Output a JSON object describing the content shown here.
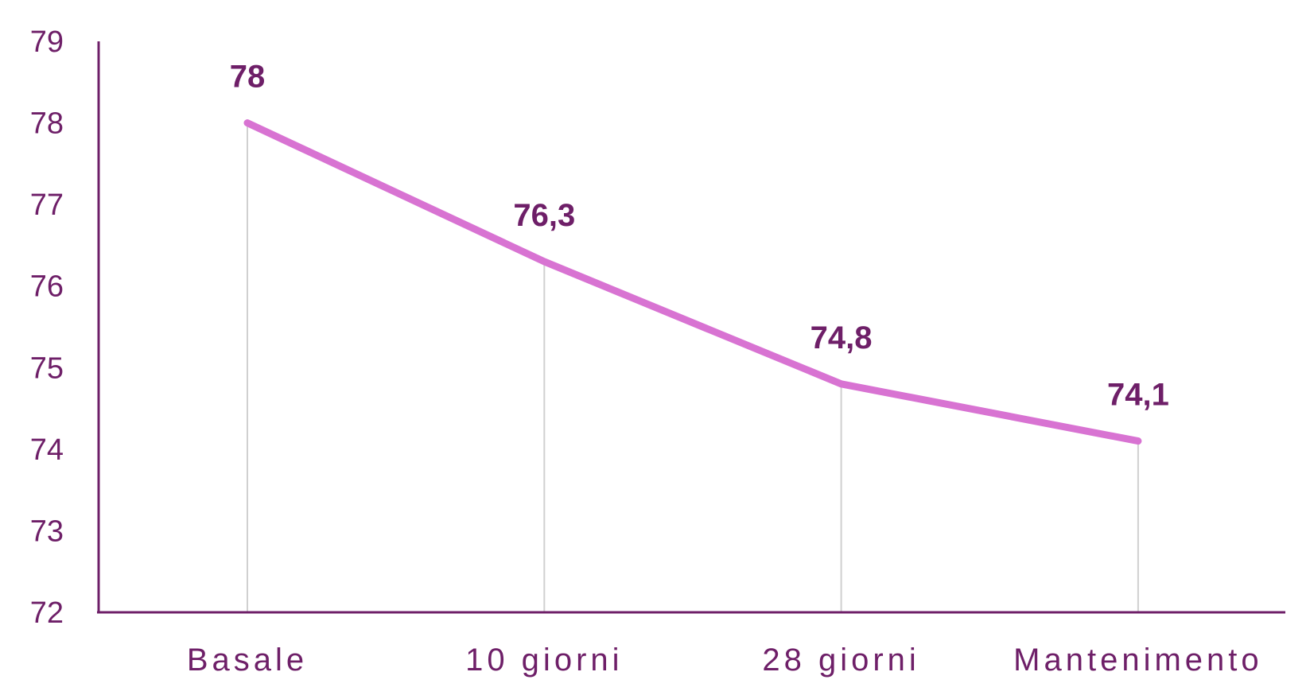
{
  "colors": {
    "line": "#d873d2",
    "text": "#6e1f68",
    "axis": "#6e1f68",
    "drop": "#d0d0d0"
  },
  "chart_data": {
    "type": "line",
    "categories": [
      "Basale",
      "10 giorni",
      "28 giorni",
      "Mantenimento"
    ],
    "values": [
      78,
      76.3,
      74.8,
      74.1
    ],
    "data_labels": [
      "78",
      "76,3",
      "74,8",
      "74,1"
    ],
    "yticks": [
      72,
      73,
      74,
      75,
      76,
      77,
      78,
      79
    ],
    "ylim": [
      72,
      79
    ],
    "grid": false,
    "drop_lines": true,
    "legend": "none"
  }
}
